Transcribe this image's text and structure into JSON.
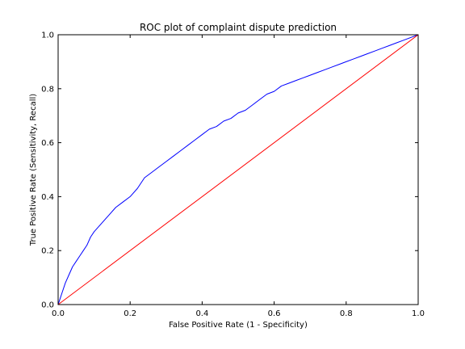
{
  "chart_data": {
    "type": "line",
    "title": "ROC plot of  complaint dispute prediction",
    "xlabel": "False Positive Rate (1 - Specificity)",
    "ylabel": "True Positive Rate (Sensitivity, Recall)",
    "xlim": [
      0.0,
      1.0
    ],
    "ylim": [
      0.0,
      1.0
    ],
    "x_ticks": [
      "0.0",
      "0.2",
      "0.4",
      "0.6",
      "0.8",
      "1.0"
    ],
    "y_ticks": [
      "0.0",
      "0.2",
      "0.4",
      "0.6",
      "0.8",
      "1.0"
    ],
    "grid": false,
    "legend": "none",
    "series": [
      {
        "color": "#0000ff",
        "x": [
          0.0,
          0.005,
          0.01,
          0.02,
          0.03,
          0.04,
          0.05,
          0.06,
          0.07,
          0.08,
          0.09,
          0.1,
          0.12,
          0.14,
          0.16,
          0.18,
          0.2,
          0.22,
          0.24,
          0.26,
          0.28,
          0.3,
          0.32,
          0.34,
          0.36,
          0.38,
          0.4,
          0.42,
          0.44,
          0.46,
          0.48,
          0.5,
          0.52,
          0.54,
          0.56,
          0.58,
          0.6,
          0.62,
          0.64,
          0.66,
          0.68,
          0.7,
          0.72,
          0.74,
          0.76,
          0.78,
          0.8,
          0.82,
          0.84,
          0.86,
          0.88,
          0.9,
          0.92,
          0.94,
          0.96,
          0.98,
          1.0
        ],
        "y": [
          0.0,
          0.02,
          0.04,
          0.08,
          0.11,
          0.14,
          0.16,
          0.18,
          0.2,
          0.22,
          0.25,
          0.27,
          0.3,
          0.33,
          0.36,
          0.38,
          0.4,
          0.43,
          0.47,
          0.49,
          0.51,
          0.53,
          0.55,
          0.57,
          0.59,
          0.61,
          0.63,
          0.65,
          0.66,
          0.68,
          0.69,
          0.71,
          0.72,
          0.74,
          0.76,
          0.78,
          0.79,
          0.81,
          0.82,
          0.83,
          0.84,
          0.85,
          0.86,
          0.87,
          0.88,
          0.89,
          0.9,
          0.91,
          0.92,
          0.93,
          0.94,
          0.95,
          0.96,
          0.97,
          0.98,
          0.99,
          1.0
        ]
      },
      {
        "color": "#ff0000",
        "x": [
          0.0,
          1.0
        ],
        "y": [
          0.0,
          1.0
        ]
      }
    ]
  }
}
